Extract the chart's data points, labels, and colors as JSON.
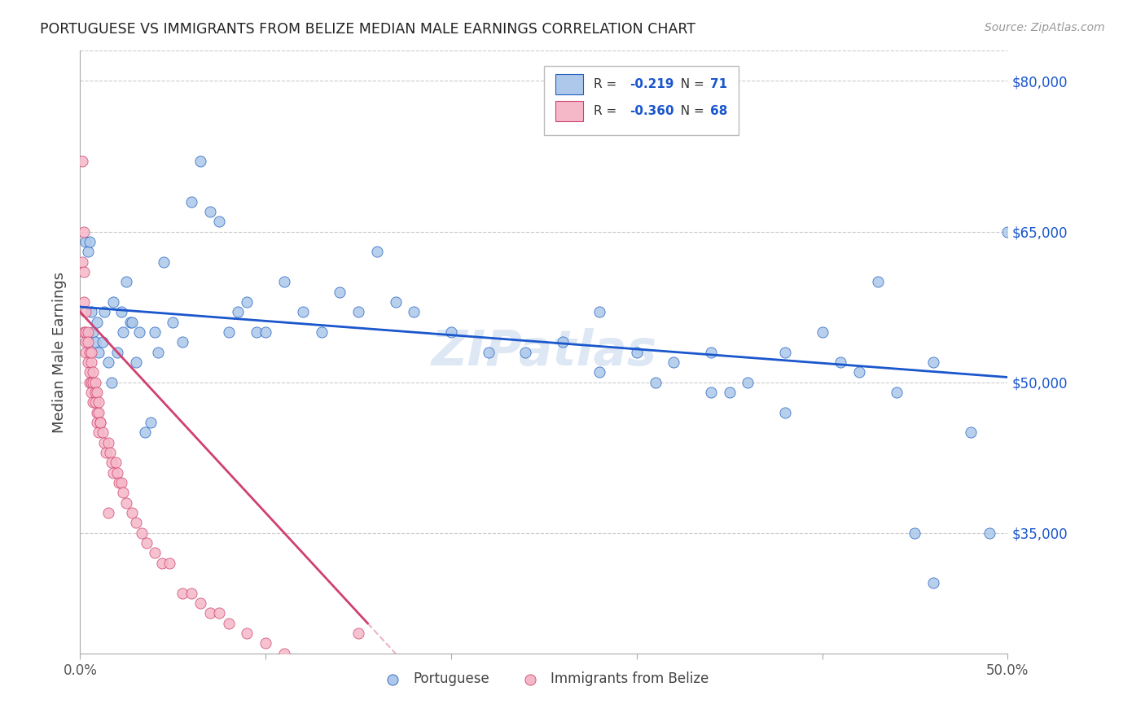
{
  "title": "PORTUGUESE VS IMMIGRANTS FROM BELIZE MEDIAN MALE EARNINGS CORRELATION CHART",
  "source": "Source: ZipAtlas.com",
  "ylabel": "Median Male Earnings",
  "xlim": [
    0.0,
    0.5
  ],
  "ylim": [
    23000,
    83000
  ],
  "yticks": [
    35000,
    50000,
    65000,
    80000
  ],
  "ytick_labels": [
    "$35,000",
    "$50,000",
    "$65,000",
    "$80,000"
  ],
  "xtick_vals": [
    0.0,
    0.1,
    0.2,
    0.3,
    0.4,
    0.5
  ],
  "xtick_labels": [
    "0.0%",
    "",
    "",
    "",
    "",
    "50.0%"
  ],
  "legend_r1_val": "-0.219",
  "legend_n1_val": "71",
  "legend_r2_val": "-0.360",
  "legend_n2_val": "68",
  "blue_fill": "#adc8ea",
  "blue_edge": "#2060c0",
  "pink_fill": "#f5b8c8",
  "pink_edge": "#d04070",
  "blue_line": "#1a56cc",
  "pink_line": "#d04070",
  "watermark": "ZIPatlas",
  "watermark_color": "#c8d8ee",
  "blue_x": [
    0.003,
    0.004,
    0.005,
    0.006,
    0.007,
    0.008,
    0.009,
    0.01,
    0.012,
    0.013,
    0.015,
    0.017,
    0.018,
    0.02,
    0.022,
    0.023,
    0.025,
    0.027,
    0.028,
    0.03,
    0.032,
    0.035,
    0.038,
    0.04,
    0.042,
    0.045,
    0.05,
    0.055,
    0.06,
    0.065,
    0.07,
    0.075,
    0.08,
    0.085,
    0.09,
    0.095,
    0.1,
    0.11,
    0.12,
    0.13,
    0.14,
    0.15,
    0.16,
    0.17,
    0.18,
    0.2,
    0.22,
    0.24,
    0.26,
    0.28,
    0.3,
    0.32,
    0.34,
    0.36,
    0.38,
    0.4,
    0.42,
    0.44,
    0.46,
    0.48,
    0.49,
    0.5,
    0.35,
    0.41,
    0.45,
    0.46,
    0.34,
    0.28,
    0.31,
    0.38,
    0.43
  ],
  "blue_y": [
    64000,
    63000,
    64000,
    57000,
    55000,
    54000,
    56000,
    53000,
    54000,
    57000,
    52000,
    50000,
    58000,
    53000,
    57000,
    55000,
    60000,
    56000,
    56000,
    52000,
    55000,
    45000,
    46000,
    55000,
    53000,
    62000,
    56000,
    54000,
    68000,
    72000,
    67000,
    66000,
    55000,
    57000,
    58000,
    55000,
    55000,
    60000,
    57000,
    55000,
    59000,
    57000,
    63000,
    58000,
    57000,
    55000,
    53000,
    53000,
    54000,
    51000,
    53000,
    52000,
    49000,
    50000,
    53000,
    55000,
    51000,
    49000,
    52000,
    45000,
    35000,
    65000,
    49000,
    52000,
    35000,
    30000,
    53000,
    57000,
    50000,
    47000,
    60000
  ],
  "pink_x": [
    0.001,
    0.001,
    0.002,
    0.002,
    0.002,
    0.002,
    0.003,
    0.003,
    0.003,
    0.003,
    0.004,
    0.004,
    0.004,
    0.005,
    0.005,
    0.005,
    0.006,
    0.006,
    0.006,
    0.007,
    0.007,
    0.008,
    0.008,
    0.009,
    0.009,
    0.01,
    0.01,
    0.011,
    0.012,
    0.013,
    0.014,
    0.015,
    0.016,
    0.017,
    0.018,
    0.019,
    0.02,
    0.021,
    0.022,
    0.023,
    0.025,
    0.028,
    0.03,
    0.033,
    0.036,
    0.04,
    0.044,
    0.048,
    0.055,
    0.06,
    0.065,
    0.07,
    0.075,
    0.08,
    0.09,
    0.1,
    0.11,
    0.12,
    0.13,
    0.14,
    0.15,
    0.015,
    0.006,
    0.007,
    0.008,
    0.009,
    0.01,
    0.011
  ],
  "pink_y": [
    72000,
    62000,
    65000,
    61000,
    58000,
    55000,
    57000,
    55000,
    54000,
    53000,
    55000,
    54000,
    52000,
    53000,
    51000,
    50000,
    52000,
    50000,
    49000,
    50000,
    48000,
    49000,
    48000,
    47000,
    46000,
    47000,
    45000,
    46000,
    45000,
    44000,
    43000,
    44000,
    43000,
    42000,
    41000,
    42000,
    41000,
    40000,
    40000,
    39000,
    38000,
    37000,
    36000,
    35000,
    34000,
    33000,
    32000,
    32000,
    29000,
    29000,
    28000,
    27000,
    27000,
    26000,
    25000,
    24000,
    23000,
    22000,
    22000,
    21000,
    25000,
    37000,
    53000,
    51000,
    50000,
    49000,
    48000,
    46000
  ],
  "blue_trend_x": [
    0.0,
    0.5
  ],
  "blue_trend_y": [
    57500,
    50500
  ],
  "pink_trend_x0": 0.0,
  "pink_trend_x1": 0.155,
  "pink_trend_dash_x0": 0.155,
  "pink_trend_dash_x1": 0.5,
  "pink_trend_y_at_0": 57000,
  "pink_trend_y_at_155": 26000
}
